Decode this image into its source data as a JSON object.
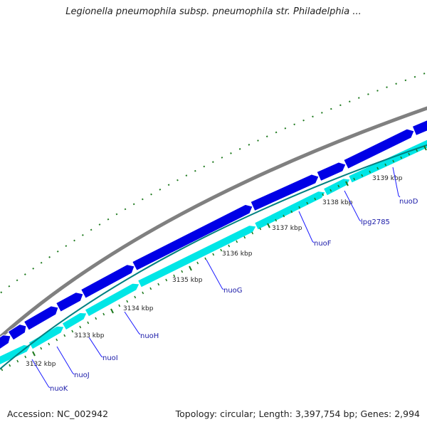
{
  "title": "Legionella pneumophila subsp. pneumophila str. Philadelphia ...",
  "footer": {
    "accession": "Accession: NC_002942",
    "topology": "Topology: circular; Length: 3,397,754 bp; Genes: 2,994"
  },
  "tick_labels": [
    "3132 kbp",
    "3133 kbp",
    "3134 kbp",
    "3135 kbp",
    "3136 kbp",
    "3137 kbp",
    "3138 kbp",
    "3139 kbp"
  ],
  "genes": [
    "nuoK",
    "nuoJ",
    "nuoI",
    "nuoH",
    "nuoG",
    "nuoF",
    "lpg2785",
    "nuoD"
  ],
  "colors": {
    "backbone": "#808080",
    "cds_forward": "#0000e6",
    "cds_reverse": "#00e6e6",
    "ticks": "#1e7a1e",
    "scale_line": "#008080",
    "label_line": "#1a1aff",
    "label_text": "#1a1aa8"
  }
}
